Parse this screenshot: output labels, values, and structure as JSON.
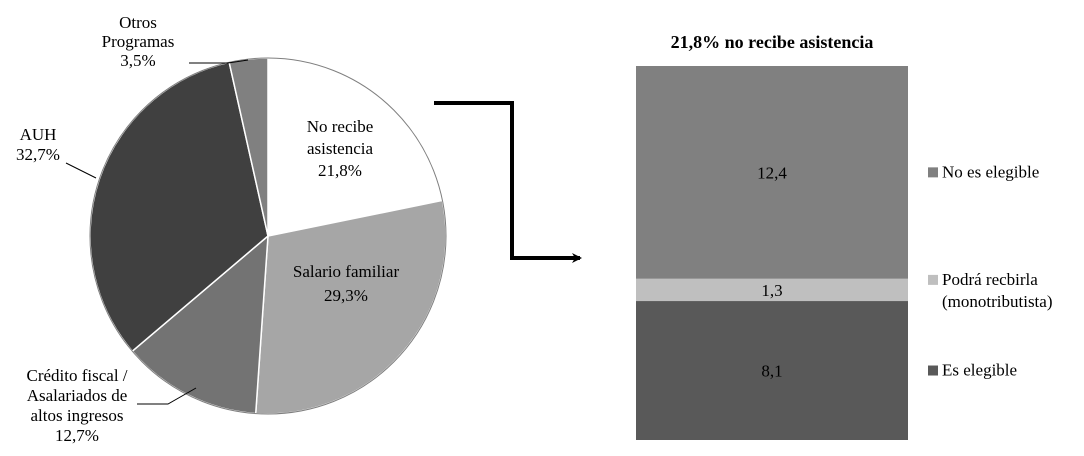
{
  "chart_data": [
    {
      "type": "pie",
      "slices": [
        {
          "label_lines": [
            "No recibe",
            "asistencia"
          ],
          "value_text": "21,8%",
          "value": 21.8,
          "color": "#ffffff",
          "label_inside": true,
          "label_color": "#000000"
        },
        {
          "label_lines": [
            "Salario familiar"
          ],
          "value_text": "29,3%",
          "value": 29.3,
          "color": "#a6a6a6",
          "label_inside": true,
          "label_color": "#000000"
        },
        {
          "label_lines": [
            "Crédito fiscal /",
            "Asalariados de",
            "altos ingresos"
          ],
          "value_text": "12,7%",
          "value": 12.7,
          "color": "#737373",
          "label_inside": false
        },
        {
          "label_lines": [
            "AUH"
          ],
          "value_text": "32,7%",
          "value": 32.7,
          "color": "#404040",
          "label_inside": false
        },
        {
          "label_lines": [
            "Otros",
            "Programas"
          ],
          "value_text": "3,5%",
          "value": 3.5,
          "color": "#808080",
          "label_inside": false
        }
      ]
    },
    {
      "type": "bar",
      "stacked": true,
      "title": "21,8% no recibe asistencia",
      "series": [
        {
          "name": "Es elegible",
          "value": 8.1,
          "value_text": "8,1",
          "color": "#595959"
        },
        {
          "name_lines": [
            "Podrá recbirla",
            "(monotributista)"
          ],
          "value": 1.3,
          "value_text": "1,3",
          "color": "#bfbfbf"
        },
        {
          "name": "No es elegible",
          "value": 12.4,
          "value_text": "12,4",
          "color": "#808080"
        }
      ],
      "legend_placement": "right"
    }
  ]
}
